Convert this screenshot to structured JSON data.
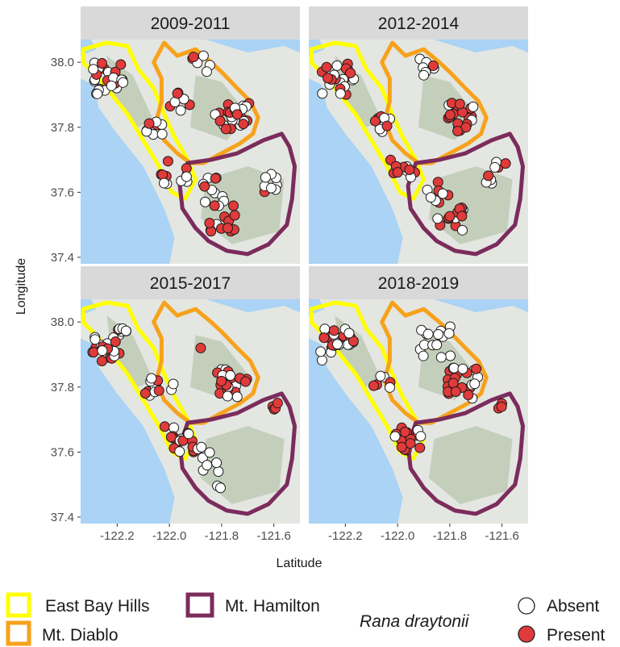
{
  "axes": {
    "x_label": "Latitude",
    "y_label": "Longitude",
    "x_ticks": [
      "-122.2",
      "-122.0",
      "-121.8",
      "-121.6"
    ],
    "y_ticks": [
      "37.4",
      "37.6",
      "37.8",
      "38.0"
    ]
  },
  "colors": {
    "strip_bg": "#d9d9d9",
    "water": "#aad3f5",
    "land": "#e4e6e2",
    "hills": "#b9c7ad",
    "east_bay_hills": "#ffff00",
    "mt_diablo": "#f7a21b",
    "mt_hamilton": "#7b2c5c",
    "absent": "#ffffff",
    "present": "#e03a3a"
  },
  "legend": {
    "regions": [
      {
        "label": "East Bay Hills",
        "color": "#ffff00"
      },
      {
        "label": "Mt. Diablo",
        "color": "#f7a21b"
      },
      {
        "label": "Mt. Hamilton",
        "color": "#7b2c5c"
      }
    ],
    "species_title": "Rana draytonii",
    "points": [
      {
        "label": "Absent",
        "color": "#ffffff"
      },
      {
        "label": "Present",
        "color": "#e03a3a"
      }
    ]
  },
  "panels": [
    {
      "title": "2009-2011",
      "clusters": [
        {
          "lon": -122.23,
          "lat": 37.95,
          "n": 24,
          "spread": 0.05,
          "present_frac": 0.45
        },
        {
          "lon": -122.06,
          "lat": 37.8,
          "n": 8,
          "spread": 0.025,
          "present_frac": 0.3
        },
        {
          "lon": -121.96,
          "lat": 37.88,
          "n": 8,
          "spread": 0.03,
          "present_frac": 0.5
        },
        {
          "lon": -121.88,
          "lat": 37.99,
          "n": 6,
          "spread": 0.03,
          "present_frac": 0.1
        },
        {
          "lon": -121.76,
          "lat": 37.83,
          "n": 26,
          "spread": 0.05,
          "present_frac": 0.7
        },
        {
          "lon": -121.98,
          "lat": 37.66,
          "n": 10,
          "spread": 0.04,
          "present_frac": 0.7
        },
        {
          "lon": -121.84,
          "lat": 37.61,
          "n": 10,
          "spread": 0.04,
          "present_frac": 0.2
        },
        {
          "lon": -121.8,
          "lat": 37.52,
          "n": 14,
          "spread": 0.04,
          "present_frac": 0.7
        },
        {
          "lon": -121.6,
          "lat": 37.63,
          "n": 8,
          "spread": 0.03,
          "present_frac": 0.1
        }
      ]
    },
    {
      "title": "2012-2014",
      "clusters": [
        {
          "lon": -122.23,
          "lat": 37.95,
          "n": 22,
          "spread": 0.05,
          "present_frac": 0.6
        },
        {
          "lon": -122.06,
          "lat": 37.81,
          "n": 8,
          "spread": 0.025,
          "present_frac": 0.4
        },
        {
          "lon": -121.88,
          "lat": 37.98,
          "n": 8,
          "spread": 0.035,
          "present_frac": 0.2
        },
        {
          "lon": -121.76,
          "lat": 37.83,
          "n": 22,
          "spread": 0.045,
          "present_frac": 0.75
        },
        {
          "lon": -121.98,
          "lat": 37.66,
          "n": 10,
          "spread": 0.04,
          "present_frac": 0.7
        },
        {
          "lon": -121.85,
          "lat": 37.6,
          "n": 8,
          "spread": 0.035,
          "present_frac": 0.2
        },
        {
          "lon": -121.8,
          "lat": 37.52,
          "n": 14,
          "spread": 0.04,
          "present_frac": 0.75
        },
        {
          "lon": -121.62,
          "lat": 37.66,
          "n": 8,
          "spread": 0.035,
          "present_frac": 0.3
        }
      ]
    },
    {
      "title": "2015-2017",
      "clusters": [
        {
          "lon": -122.23,
          "lat": 37.93,
          "n": 26,
          "spread": 0.05,
          "present_frac": 0.5
        },
        {
          "lon": -122.06,
          "lat": 37.8,
          "n": 10,
          "spread": 0.03,
          "present_frac": 0.55
        },
        {
          "lon": -121.98,
          "lat": 37.8,
          "n": 2,
          "spread": 0.01,
          "present_frac": 0.0
        },
        {
          "lon": -121.88,
          "lat": 37.92,
          "n": 1,
          "spread": 0.0,
          "present_frac": 1.0
        },
        {
          "lon": -121.76,
          "lat": 37.81,
          "n": 24,
          "spread": 0.045,
          "present_frac": 0.65
        },
        {
          "lon": -121.6,
          "lat": 37.74,
          "n": 4,
          "spread": 0.015,
          "present_frac": 0.8
        },
        {
          "lon": -121.96,
          "lat": 37.64,
          "n": 16,
          "spread": 0.045,
          "present_frac": 0.7
        },
        {
          "lon": -121.84,
          "lat": 37.58,
          "n": 8,
          "spread": 0.04,
          "present_frac": 0.2
        },
        {
          "lon": -121.81,
          "lat": 37.49,
          "n": 3,
          "spread": 0.01,
          "present_frac": 0.0
        }
      ]
    },
    {
      "title": "2018-2019",
      "clusters": [
        {
          "lon": -122.23,
          "lat": 37.93,
          "n": 24,
          "spread": 0.05,
          "present_frac": 0.4
        },
        {
          "lon": -122.06,
          "lat": 37.81,
          "n": 6,
          "spread": 0.025,
          "present_frac": 0.5
        },
        {
          "lon": -121.86,
          "lat": 37.94,
          "n": 16,
          "spread": 0.05,
          "present_frac": 0.0
        },
        {
          "lon": -121.75,
          "lat": 37.81,
          "n": 24,
          "spread": 0.05,
          "present_frac": 0.65
        },
        {
          "lon": -121.6,
          "lat": 37.74,
          "n": 3,
          "spread": 0.01,
          "present_frac": 0.7
        },
        {
          "lon": -121.96,
          "lat": 37.64,
          "n": 16,
          "spread": 0.04,
          "present_frac": 0.7
        }
      ]
    }
  ]
}
